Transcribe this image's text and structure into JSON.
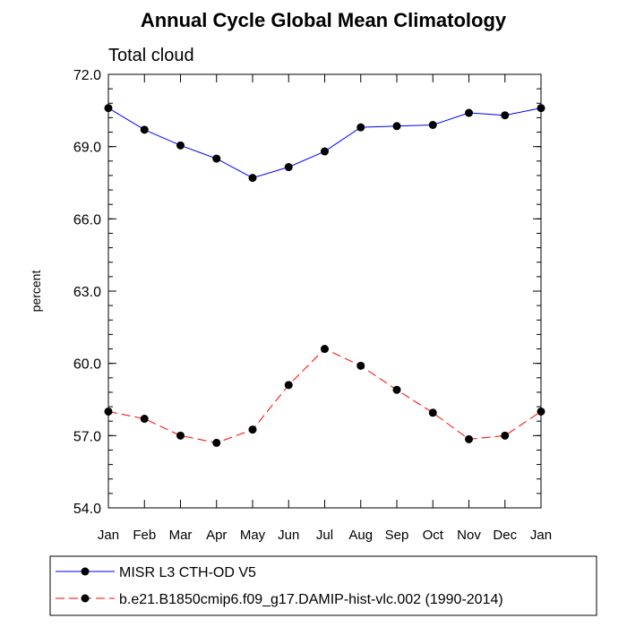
{
  "chart_data": {
    "type": "line",
    "title": "Annual Cycle Global Mean Climatology",
    "subtitle": "Total cloud",
    "xlabel": "",
    "ylabel": "percent",
    "categories": [
      "Jan",
      "Feb",
      "Mar",
      "Apr",
      "May",
      "Jun",
      "Jul",
      "Aug",
      "Sep",
      "Oct",
      "Nov",
      "Dec",
      "Jan"
    ],
    "yticks": [
      "72.0",
      "69.0",
      "66.0",
      "63.0",
      "60.0",
      "57.0",
      "54.0"
    ],
    "ylim": [
      54,
      72
    ],
    "grid": false,
    "legend_position": "bottom",
    "series": [
      {
        "name": "MISR L3 CTH-OD V5",
        "color": "#0000ff",
        "line_style": "solid",
        "marker": "filled-circle",
        "values": [
          70.6,
          69.7,
          69.05,
          68.5,
          67.7,
          68.15,
          68.8,
          69.8,
          69.85,
          69.9,
          70.4,
          70.3,
          70.6
        ]
      },
      {
        "name": "b.e21.B1850cmip6.f09_g17.DAMIP-hist-vlc.002 (1990-2014)",
        "color": "#ff0000",
        "line_style": "dashed",
        "marker": "filled-circle",
        "values": [
          58.0,
          57.7,
          57.0,
          56.7,
          57.25,
          59.1,
          60.6,
          59.9,
          58.9,
          57.95,
          56.85,
          57.0,
          58.0
        ]
      }
    ]
  }
}
